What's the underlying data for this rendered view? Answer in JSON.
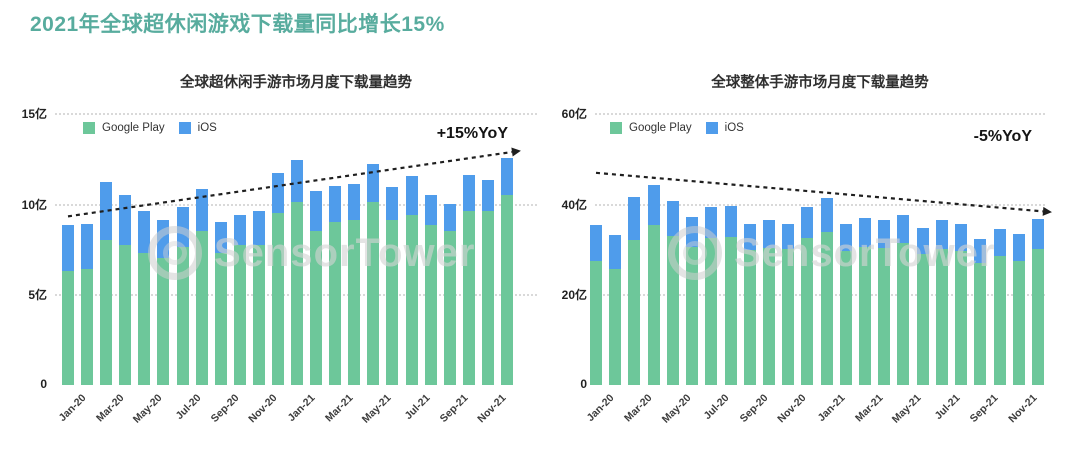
{
  "page_title": "2021年全球超休闲游戏下载量同比增长15%",
  "watermark": {
    "text": "SensorTower"
  },
  "colors": {
    "title": "#58ac9e",
    "google_play": "#6dc79a",
    "ios": "#4f9ceb",
    "grid": "#d9d9d9",
    "trend": "#1f1f1f"
  },
  "chart_data": [
    {
      "type": "bar",
      "stacked": true,
      "title": "全球超休闲手游市场月度下载量趋势",
      "annotation": "+15%YoY",
      "unit": "亿",
      "ylim": [
        0,
        15
      ],
      "yticks": [
        {
          "value": 0,
          "label": "0"
        },
        {
          "value": 5,
          "label": "5亿"
        },
        {
          "value": 10,
          "label": "10亿"
        },
        {
          "value": 15,
          "label": "15亿"
        }
      ],
      "grid": "dotted-horizontal",
      "legend_position": "top-left",
      "x_tick_every": 2,
      "categories": [
        "Jan-20",
        "Feb-20",
        "Mar-20",
        "Apr-20",
        "May-20",
        "Jun-20",
        "Jul-20",
        "Aug-20",
        "Sep-20",
        "Oct-20",
        "Nov-20",
        "Dec-20",
        "Jan-21",
        "Feb-21",
        "Mar-21",
        "Apr-21",
        "May-21",
        "Jun-21",
        "Jul-21",
        "Aug-21",
        "Sep-21",
        "Oct-21",
        "Nov-21",
        "Dec-21"
      ],
      "series": [
        {
          "name": "Google Play",
          "color_key": "google_play",
          "values": [
            6.3,
            6.4,
            8.0,
            7.7,
            7.3,
            7.0,
            7.6,
            8.5,
            7.3,
            7.7,
            7.7,
            9.5,
            10.1,
            8.5,
            9.0,
            9.1,
            10.1,
            9.1,
            9.4,
            8.8,
            8.5,
            9.6,
            9.6,
            10.5
          ]
        },
        {
          "name": "iOS",
          "color_key": "ios",
          "values": [
            2.5,
            2.5,
            3.2,
            2.8,
            2.3,
            2.1,
            2.2,
            2.3,
            1.7,
            1.7,
            1.9,
            2.2,
            2.3,
            2.2,
            2.0,
            2.0,
            2.1,
            1.8,
            2.1,
            1.7,
            1.5,
            2.0,
            1.7,
            2.0
          ]
        }
      ],
      "trend_arrow": {
        "start_value": 9.3,
        "end_value": 12.85,
        "direction": "up",
        "label": "+15%YoY"
      }
    },
    {
      "type": "bar",
      "stacked": true,
      "title": "全球整体手游市场月度下载量趋势",
      "annotation": "-5%YoY",
      "unit": "亿",
      "ylim": [
        0,
        60
      ],
      "yticks": [
        {
          "value": 0,
          "label": "0"
        },
        {
          "value": 20,
          "label": "20亿"
        },
        {
          "value": 40,
          "label": "40亿"
        },
        {
          "value": 60,
          "label": "60亿"
        }
      ],
      "grid": "dotted-horizontal",
      "legend_position": "top-left",
      "x_tick_every": 2,
      "categories": [
        "Jan-20",
        "Feb-20",
        "Mar-20",
        "Apr-20",
        "May-20",
        "Jun-20",
        "Jul-20",
        "Aug-20",
        "Sep-20",
        "Oct-20",
        "Nov-20",
        "Dec-20",
        "Jan-21",
        "Feb-21",
        "Mar-21",
        "Apr-21",
        "May-21",
        "Jun-21",
        "Jul-21",
        "Aug-21",
        "Sep-21",
        "Oct-21",
        "Nov-21",
        "Dec-21"
      ],
      "series": [
        {
          "name": "Google Play",
          "color_key": "google_play",
          "values": [
            27.3,
            25.5,
            31.9,
            35.3,
            32.9,
            30.5,
            32.4,
            32.7,
            29.8,
            30.3,
            30.0,
            32.4,
            33.8,
            29.5,
            30.5,
            30.3,
            31.4,
            28.8,
            29.9,
            29.6,
            27.0,
            28.4,
            27.3,
            29.9
          ]
        },
        {
          "name": "iOS",
          "color_key": "ios",
          "values": [
            7.9,
            7.6,
            9.5,
            8.9,
            7.6,
            6.6,
            6.8,
            6.8,
            5.8,
            6.0,
            5.6,
            6.8,
            7.5,
            6.0,
            6.3,
            6.1,
            6.2,
            5.8,
            6.5,
            5.9,
            5.3,
            6.1,
            6.0,
            6.8
          ]
        }
      ],
      "trend_arrow": {
        "start_value": 46.8,
        "end_value": 38.3,
        "direction": "down",
        "label": "-5%YoY"
      }
    }
  ]
}
